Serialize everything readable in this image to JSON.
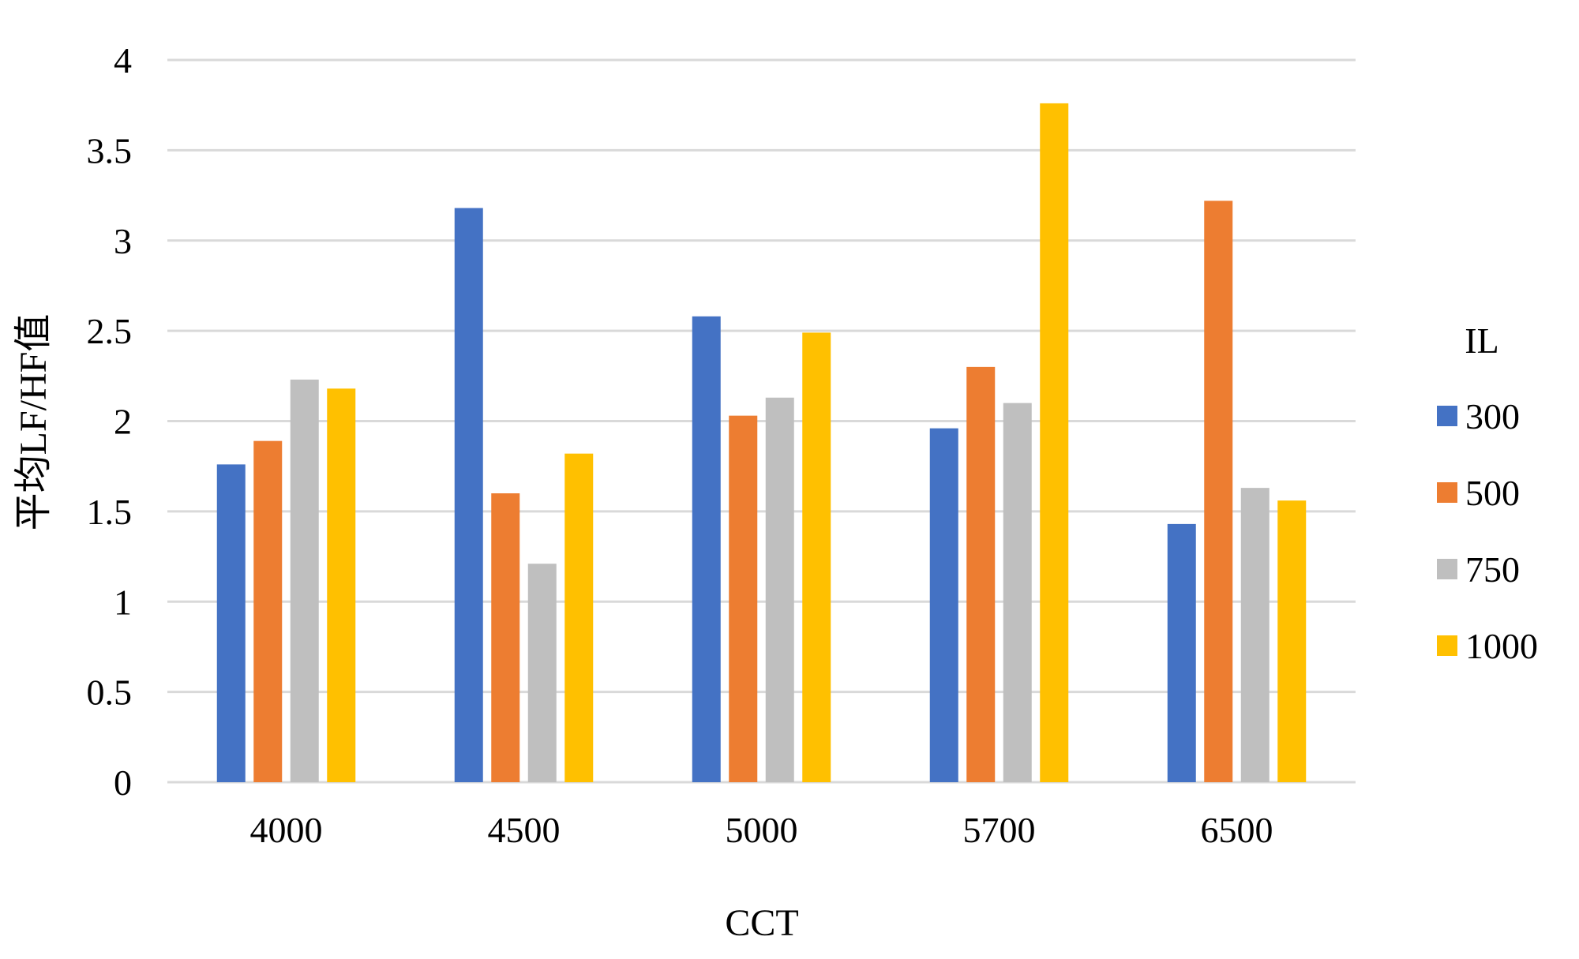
{
  "chart_data": {
    "type": "bar",
    "title": "",
    "xlabel": "CCT",
    "ylabel": "平均LF/HF值",
    "categories": [
      "4000",
      "4500",
      "5000",
      "5700",
      "6500"
    ],
    "ylim": [
      0,
      4
    ],
    "yticks": [
      "0",
      "0.5",
      "1",
      "1.5",
      "2",
      "2.5",
      "3",
      "3.5",
      "4"
    ],
    "grid": true,
    "legend": {
      "title": "IL",
      "placement": "right"
    },
    "series": [
      {
        "name": "300",
        "color": "#4472C4",
        "values": [
          1.76,
          3.18,
          2.58,
          1.96,
          1.43
        ]
      },
      {
        "name": "500",
        "color": "#ED7D31",
        "values": [
          1.89,
          1.6,
          2.03,
          2.3,
          3.22
        ]
      },
      {
        "name": "750",
        "color": "#BFBFBF",
        "values": [
          2.23,
          1.21,
          2.13,
          2.1,
          1.63
        ]
      },
      {
        "name": "1000",
        "color": "#FFC000",
        "values": [
          2.18,
          1.82,
          2.49,
          3.76,
          1.56
        ]
      }
    ]
  }
}
